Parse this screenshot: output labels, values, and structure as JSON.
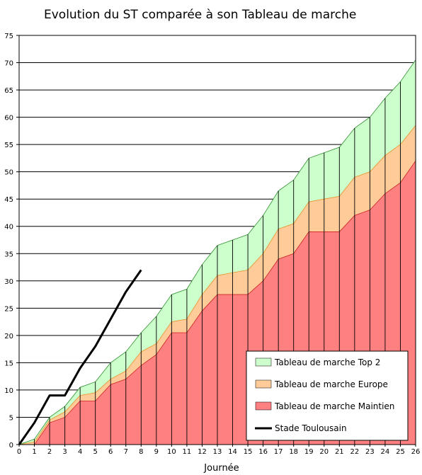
{
  "chart_data": {
    "type": "area",
    "title": "Evolution du ST comparée à son Tableau de marche",
    "xlabel": "Journée",
    "ylabel": "",
    "xlim": [
      0,
      26
    ],
    "ylim": [
      0,
      75
    ],
    "yticks": [
      0,
      5,
      10,
      15,
      20,
      25,
      30,
      35,
      40,
      45,
      50,
      55,
      60,
      65,
      70,
      75
    ],
    "grid": "horizontal",
    "legend_position": "bottom-right",
    "x": [
      0,
      1,
      2,
      3,
      4,
      5,
      6,
      7,
      8,
      9,
      10,
      11,
      12,
      13,
      14,
      15,
      16,
      17,
      18,
      19,
      20,
      21,
      22,
      23,
      24,
      25,
      26
    ],
    "series": [
      {
        "name": "Tableau de marche Maintien",
        "kind": "area",
        "color": "#ff8080",
        "values": [
          0,
          0,
          4,
          5,
          8,
          8,
          11,
          12,
          14.5,
          16.5,
          20.5,
          20.5,
          24.5,
          27.5,
          27.5,
          27.5,
          30,
          34,
          35,
          39,
          39,
          39,
          42,
          43,
          46,
          48,
          52
        ]
      },
      {
        "name": "Tableau de marche Europe",
        "kind": "area",
        "color": "#ffcc99",
        "values": [
          0,
          0.5,
          4.5,
          6,
          9,
          9.5,
          12,
          13.5,
          17,
          18.5,
          22.5,
          23,
          27.5,
          31,
          31.5,
          32,
          35,
          39.5,
          40.5,
          44.5,
          45,
          45.5,
          49,
          50,
          53,
          55,
          58.5
        ]
      },
      {
        "name": "Tableau de marche Top 2",
        "kind": "area",
        "color": "#ccffcc",
        "values": [
          0,
          1,
          5,
          7,
          10.5,
          11.5,
          15,
          17,
          20.5,
          23.5,
          27.5,
          28.5,
          33,
          36.5,
          37.5,
          38.5,
          42,
          46.5,
          48.5,
          52.5,
          53.5,
          54.5,
          58,
          60,
          63.5,
          66.5,
          70.5
        ]
      },
      {
        "name": "Stade Toulousain",
        "kind": "line",
        "color": "#000000",
        "x": [
          0,
          1,
          2,
          3,
          4,
          5,
          6,
          7,
          8
        ],
        "values": [
          0,
          4,
          9,
          9,
          14,
          18,
          23,
          28,
          32
        ]
      }
    ],
    "legend_order": [
      2,
      1,
      0,
      3
    ]
  }
}
